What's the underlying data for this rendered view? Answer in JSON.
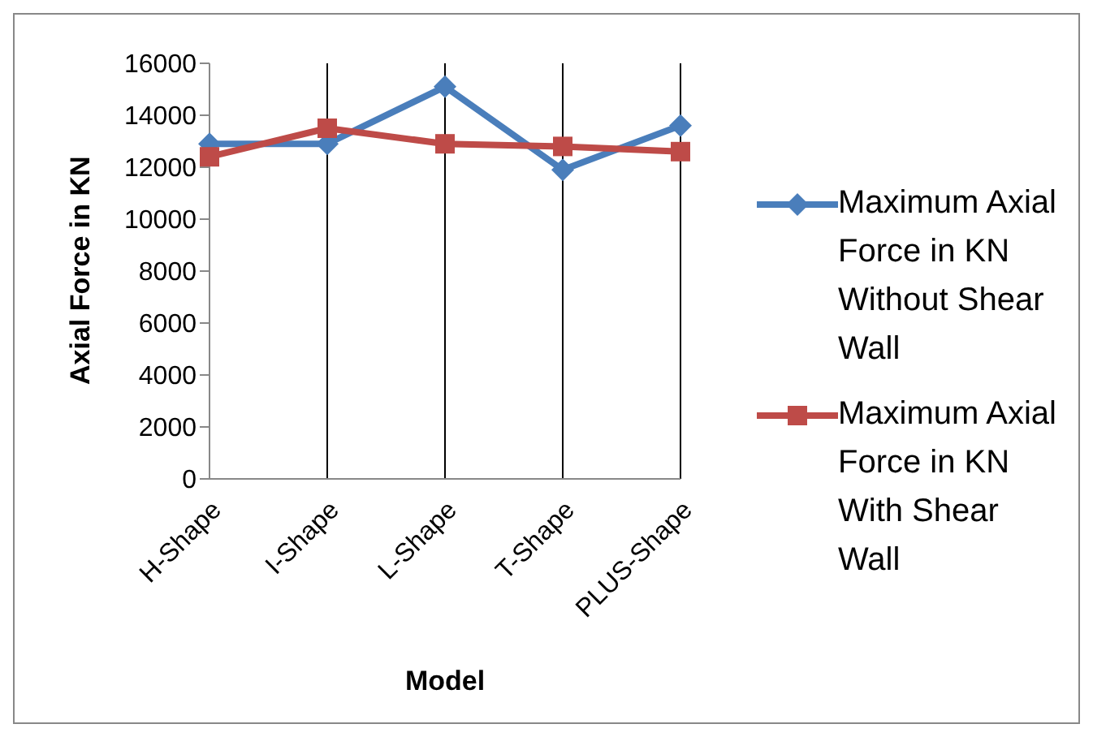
{
  "chart_data": {
    "type": "line",
    "xlabel": "Model",
    "ylabel": "Axial Force in KN",
    "categories": [
      "H-Shape",
      "I-Shape",
      "L-Shape",
      "T-Shape",
      "PLUS-Shape"
    ],
    "series": [
      {
        "name": "Maximum Axial Force in KN Without Shear Wall",
        "color": "#4a7ebb",
        "marker": "diamond",
        "values": [
          12900,
          12900,
          15100,
          11900,
          13600
        ]
      },
      {
        "name": "Maximum Axial Force in KN With Shear Wall",
        "color": "#be4b48",
        "marker": "square",
        "values": [
          12400,
          13500,
          12900,
          12800,
          12600
        ]
      }
    ],
    "ylim": [
      0,
      16000
    ],
    "yticks": [
      0,
      2000,
      4000,
      6000,
      8000,
      10000,
      12000,
      14000,
      16000
    ],
    "grid": "x",
    "legend": "right"
  }
}
